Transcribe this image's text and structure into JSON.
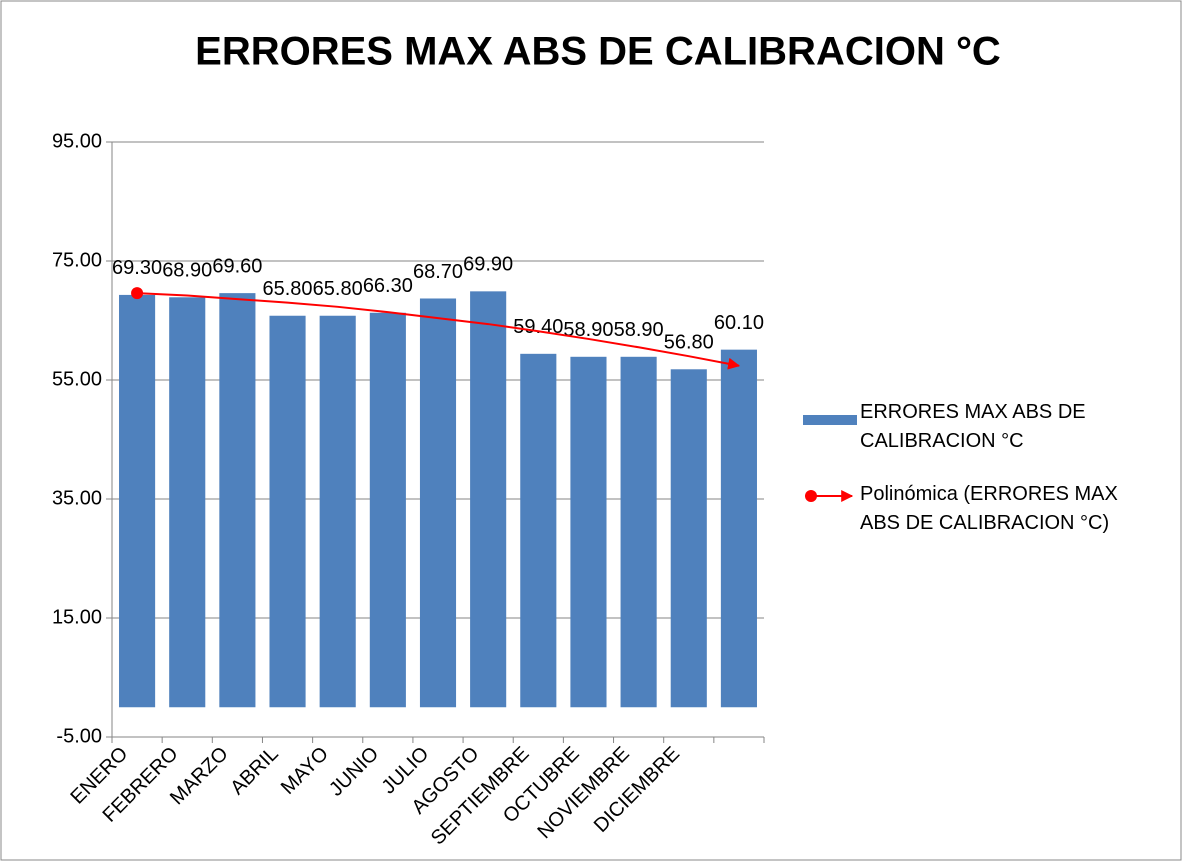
{
  "chart_data": {
    "type": "bar",
    "title": "ERRORES  MAX ABS DE CALIBRACION °C",
    "categories": [
      "ENERO",
      "FEBRERO",
      "MARZO",
      "ABRIL",
      "MAYO",
      "JUNIO",
      "JULIO",
      "AGOSTO",
      "SEPTIEMBRE",
      "OCTUBRE",
      "NOVIEMBRE",
      "DICIEMBRE",
      null
    ],
    "series": [
      {
        "name": "ERRORES  MAX ABS DE CALIBRACION °C",
        "type": "bar",
        "color": "#4f81bd",
        "values": [
          69.3,
          68.9,
          69.6,
          65.8,
          65.8,
          66.3,
          68.7,
          69.9,
          59.4,
          58.9,
          58.9,
          56.8,
          60.1
        ],
        "value_labels": [
          "69.30",
          "68.90",
          "69.60",
          "65.80",
          "65.80",
          "66.30",
          "68.70",
          "69.90",
          "59.40",
          "58.90",
          "58.90",
          "56.80",
          "60.10"
        ]
      },
      {
        "name": "Polinómica (ERRORES  MAX ABS DE CALIBRACION °C)",
        "type": "line",
        "color": "#ff0000",
        "values": [
          69.6,
          69.2,
          68.6,
          68.0,
          67.3,
          66.4,
          65.4,
          64.4,
          63.2,
          61.9,
          60.5,
          59.0,
          57.4
        ]
      }
    ],
    "ylim": [
      -5,
      95
    ],
    "yticks": [
      {
        "value": -5,
        "label": "-5.00"
      },
      {
        "value": 15,
        "label": "15.00"
      },
      {
        "value": 35,
        "label": "35.00"
      },
      {
        "value": 55,
        "label": "55.00"
      },
      {
        "value": 75,
        "label": "75.00"
      },
      {
        "value": 95,
        "label": "95.00"
      }
    ],
    "grid": true,
    "legend": "right"
  }
}
